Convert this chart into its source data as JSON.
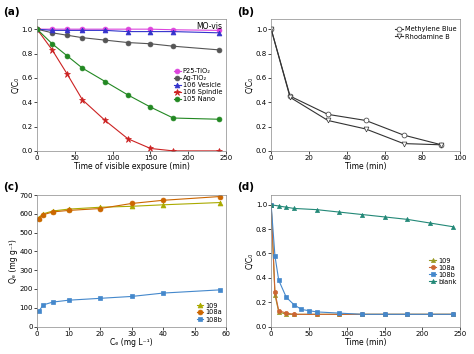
{
  "panel_a": {
    "title": "MO-vis",
    "xlabel": "Time of visible exposure (min)",
    "ylabel": "C/C₀",
    "xlim": [
      0,
      250
    ],
    "ylim": [
      0.0,
      1.08
    ],
    "yticks": [
      0.0,
      0.2,
      0.4,
      0.6,
      0.8,
      1.0
    ],
    "xticks": [
      0,
      50,
      100,
      150,
      200,
      250
    ],
    "series": [
      {
        "label": "P25-TiO₂",
        "color": "#dd44dd",
        "marker": "o",
        "markersize": 3.5,
        "markerfacecolor": "#dd44dd",
        "markeredgecolor": "#dd44dd",
        "linestyle": "-",
        "linewidth": 0.8,
        "x": [
          0,
          20,
          40,
          60,
          90,
          120,
          150,
          180,
          240
        ],
        "y": [
          1.0,
          1.0,
          1.0,
          1.0,
          1.0,
          1.0,
          1.0,
          0.995,
          0.99
        ]
      },
      {
        "label": "Ag-TiO₂",
        "color": "#555555",
        "marker": "o",
        "markersize": 3.5,
        "markerfacecolor": "#555555",
        "markeredgecolor": "#555555",
        "linestyle": "-",
        "linewidth": 0.8,
        "x": [
          0,
          20,
          40,
          60,
          90,
          120,
          150,
          180,
          240
        ],
        "y": [
          1.0,
          0.97,
          0.95,
          0.93,
          0.91,
          0.89,
          0.88,
          0.86,
          0.83
        ]
      },
      {
        "label": "106 Vesicle",
        "color": "#3333cc",
        "marker": "^",
        "markersize": 3.5,
        "markerfacecolor": "#3333cc",
        "markeredgecolor": "#3333cc",
        "linestyle": "-",
        "linewidth": 0.8,
        "x": [
          0,
          20,
          40,
          60,
          90,
          120,
          150,
          180,
          240
        ],
        "y": [
          1.0,
          0.99,
          0.99,
          0.99,
          0.99,
          0.98,
          0.98,
          0.98,
          0.97
        ]
      },
      {
        "label": "106 Spindle",
        "color": "#cc2222",
        "marker": "*",
        "markersize": 4.5,
        "markerfacecolor": "#cc2222",
        "markeredgecolor": "#cc2222",
        "linestyle": "-",
        "linewidth": 0.8,
        "x": [
          0,
          20,
          40,
          60,
          90,
          120,
          150,
          180,
          240
        ],
        "y": [
          1.0,
          0.83,
          0.63,
          0.42,
          0.25,
          0.1,
          0.02,
          0.0,
          0.0
        ]
      },
      {
        "label": "105 Nano",
        "color": "#228822",
        "marker": "o",
        "markersize": 3.5,
        "markerfacecolor": "#228822",
        "markeredgecolor": "#228822",
        "linestyle": "-",
        "linewidth": 0.8,
        "x": [
          0,
          20,
          40,
          60,
          90,
          120,
          150,
          180,
          240
        ],
        "y": [
          1.0,
          0.88,
          0.78,
          0.68,
          0.57,
          0.46,
          0.36,
          0.27,
          0.26
        ]
      }
    ]
  },
  "panel_b": {
    "xlabel": "Time (min)",
    "ylabel": "C/C₀",
    "xlim": [
      0,
      100
    ],
    "ylim": [
      0.0,
      1.08
    ],
    "yticks": [
      0.0,
      0.2,
      0.4,
      0.6,
      0.8,
      1.0
    ],
    "xticks": [
      0,
      20,
      40,
      60,
      80,
      100
    ],
    "series": [
      {
        "label": "Methylene Blue",
        "color": "#333333",
        "marker": "o",
        "markersize": 3.5,
        "markerfacecolor": "white",
        "markeredgecolor": "#333333",
        "linestyle": "-",
        "linewidth": 0.8,
        "x": [
          0,
          10,
          30,
          50,
          70,
          90
        ],
        "y": [
          1.0,
          0.45,
          0.3,
          0.25,
          0.13,
          0.05
        ]
      },
      {
        "label": "Rhodamine B",
        "color": "#333333",
        "marker": "v",
        "markersize": 3.5,
        "markerfacecolor": "white",
        "markeredgecolor": "#333333",
        "linestyle": "-",
        "linewidth": 0.8,
        "x": [
          0,
          10,
          30,
          50,
          70,
          90
        ],
        "y": [
          1.0,
          0.44,
          0.25,
          0.18,
          0.06,
          0.05
        ]
      }
    ]
  },
  "panel_c": {
    "xlabel": "Cₑ (mg L⁻¹)",
    "ylabel": "Qₑ (mg g⁻¹)",
    "xlim": [
      0,
      60
    ],
    "ylim": [
      0,
      700
    ],
    "yticks": [
      0,
      100,
      200,
      300,
      400,
      500,
      600,
      700
    ],
    "xticks": [
      0,
      10,
      20,
      30,
      40,
      50,
      60
    ],
    "series": [
      {
        "label": "109",
        "color": "#aaaa00",
        "marker": "^",
        "markersize": 3.5,
        "markerfacecolor": "#aaaa00",
        "markeredgecolor": "#aaaa00",
        "linestyle": "-",
        "linewidth": 0.8,
        "x": [
          0.5,
          2,
          5,
          10,
          20,
          30,
          40,
          58
        ],
        "y": [
          580,
          600,
          615,
          625,
          635,
          640,
          648,
          660
        ]
      },
      {
        "label": "108a",
        "color": "#cc6600",
        "marker": "o",
        "markersize": 3.5,
        "markerfacecolor": "#cc6600",
        "markeredgecolor": "#cc6600",
        "linestyle": "-",
        "linewidth": 0.8,
        "x": [
          0.5,
          2,
          5,
          10,
          20,
          30,
          40,
          58
        ],
        "y": [
          575,
          595,
          610,
          618,
          628,
          655,
          672,
          692
        ]
      },
      {
        "label": "108b",
        "color": "#4488cc",
        "marker": "s",
        "markersize": 3.5,
        "markerfacecolor": "#4488cc",
        "markeredgecolor": "#4488cc",
        "linestyle": "-",
        "linewidth": 0.8,
        "x": [
          0.5,
          2,
          5,
          10,
          20,
          30,
          40,
          58
        ],
        "y": [
          80,
          115,
          130,
          140,
          150,
          160,
          178,
          195
        ]
      }
    ]
  },
  "panel_d": {
    "xlabel": "Time (min)",
    "ylabel": "C/C₀",
    "xlim": [
      0,
      250
    ],
    "ylim": [
      0.0,
      1.08
    ],
    "yticks": [
      0.0,
      0.2,
      0.4,
      0.6,
      0.8,
      1.0
    ],
    "xticks": [
      0,
      50,
      100,
      150,
      200,
      250
    ],
    "series": [
      {
        "label": "109",
        "color": "#999922",
        "marker": "^",
        "markersize": 3,
        "markerfacecolor": "#999922",
        "markeredgecolor": "#999922",
        "linestyle": "-",
        "linewidth": 0.8,
        "x": [
          0,
          5,
          10,
          20,
          30,
          60,
          90,
          120,
          150,
          180,
          210,
          240
        ],
        "y": [
          1.0,
          0.26,
          0.12,
          0.1,
          0.1,
          0.1,
          0.1,
          0.1,
          0.1,
          0.1,
          0.1,
          0.1
        ]
      },
      {
        "label": "108a",
        "color": "#cc6633",
        "marker": "o",
        "markersize": 3,
        "markerfacecolor": "#cc6633",
        "markeredgecolor": "#cc6633",
        "linestyle": "-",
        "linewidth": 0.8,
        "x": [
          0,
          5,
          10,
          20,
          30,
          60,
          90,
          120,
          150,
          180,
          210,
          240
        ],
        "y": [
          1.0,
          0.28,
          0.13,
          0.11,
          0.1,
          0.1,
          0.1,
          0.1,
          0.1,
          0.1,
          0.1,
          0.1
        ]
      },
      {
        "label": "108b",
        "color": "#4488cc",
        "marker": "s",
        "markersize": 3,
        "markerfacecolor": "#4488cc",
        "markeredgecolor": "#4488cc",
        "linestyle": "-",
        "linewidth": 0.8,
        "x": [
          0,
          5,
          10,
          20,
          30,
          40,
          50,
          60,
          90,
          120,
          150,
          180,
          210,
          240
        ],
        "y": [
          1.0,
          0.58,
          0.38,
          0.24,
          0.18,
          0.14,
          0.13,
          0.12,
          0.11,
          0.1,
          0.1,
          0.1,
          0.1,
          0.1
        ]
      },
      {
        "label": "blank",
        "color": "#228877",
        "marker": "^",
        "markersize": 3,
        "markerfacecolor": "#228877",
        "markeredgecolor": "#228877",
        "linestyle": "-",
        "linewidth": 0.8,
        "x": [
          0,
          10,
          20,
          30,
          60,
          90,
          120,
          150,
          180,
          210,
          240
        ],
        "y": [
          1.0,
          0.99,
          0.98,
          0.97,
          0.96,
          0.94,
          0.92,
          0.9,
          0.88,
          0.85,
          0.82
        ]
      }
    ]
  },
  "label_fontsize": 5.5,
  "tick_fontsize": 5,
  "legend_fontsize": 4.8
}
